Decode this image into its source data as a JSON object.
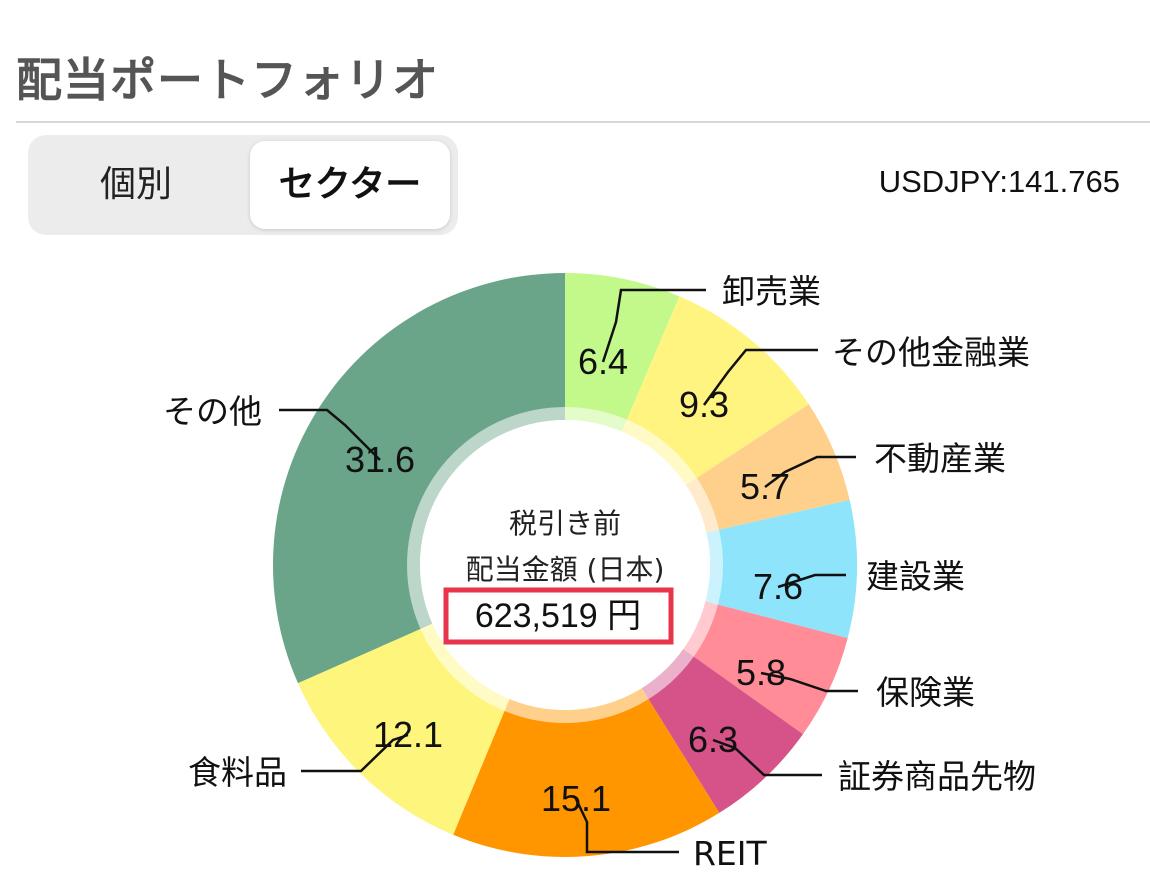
{
  "header": {
    "title": "配当ポートフォリオ"
  },
  "toggle": {
    "options": [
      "個別",
      "セクター"
    ],
    "selected": "セクター"
  },
  "fx_rate": "USDJPY:141.765",
  "center": {
    "line1": "税引き前",
    "line2": "配当金額 (日本)",
    "amount": "623,519 円"
  },
  "chart_data": {
    "type": "pie",
    "donut": true,
    "unit": "%",
    "slices": [
      {
        "label": "卸売業",
        "value": 6.4,
        "color": "#c2f98a"
      },
      {
        "label": "その他金融業",
        "value": 9.3,
        "color": "#fff480"
      },
      {
        "label": "不動産業",
        "value": 5.7,
        "color": "#ffd08c"
      },
      {
        "label": "建設業",
        "value": 7.6,
        "color": "#8ee4fa"
      },
      {
        "label": "保険業",
        "value": 5.8,
        "color": "#ff8c97"
      },
      {
        "label": "証券商品先物",
        "value": 6.3,
        "color": "#d65389"
      },
      {
        "label": "REIT",
        "value": 15.1,
        "color": "#ff9600"
      },
      {
        "label": "食料品",
        "value": 12.1,
        "color": "#fdf57c"
      },
      {
        "label": "その他",
        "value": 31.6,
        "color": "#6aa58a"
      }
    ]
  }
}
